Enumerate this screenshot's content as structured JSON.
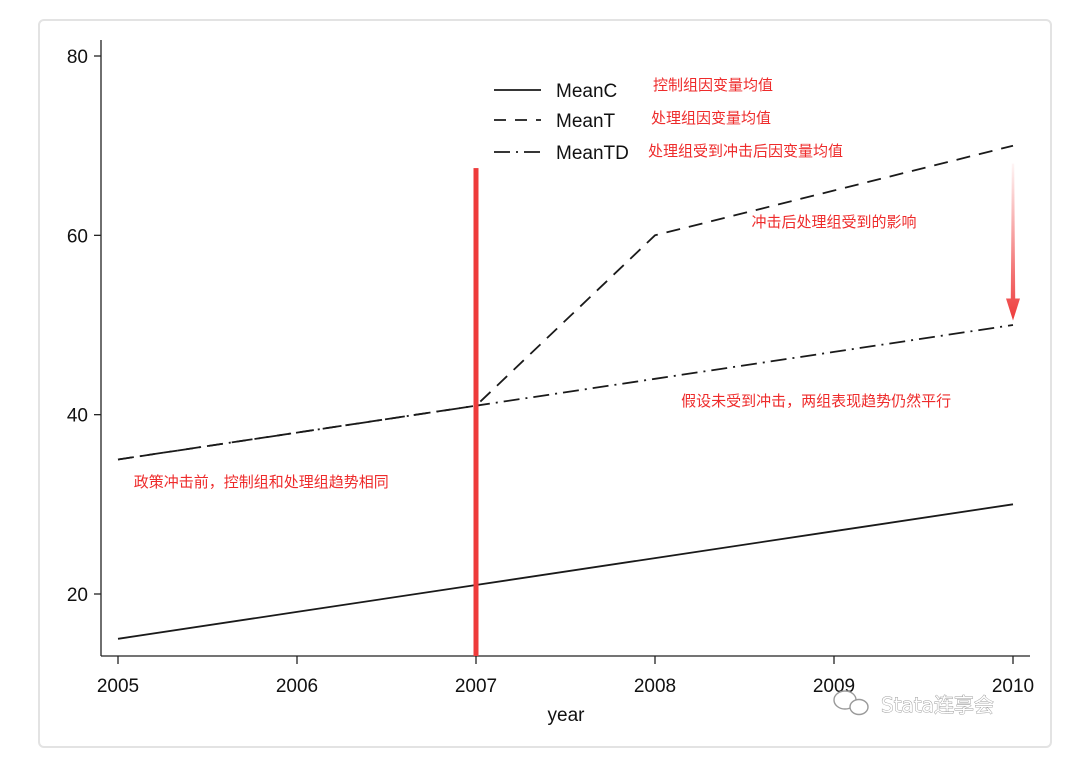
{
  "chart_data": {
    "type": "line",
    "x": [
      2005,
      2006,
      2007,
      2008,
      2009,
      2010
    ],
    "xlabel": "year",
    "ylabel": "",
    "xlim": [
      2005,
      2010
    ],
    "ylim": [
      13.5,
      81
    ],
    "yticks": [
      20,
      40,
      60,
      80
    ],
    "grid": false,
    "legend_position": "top-center",
    "series": [
      {
        "name": "MeanC",
        "style": "solid",
        "values": [
          15,
          18,
          21,
          24,
          27,
          30
        ],
        "legend_note": "控制组因变量均值"
      },
      {
        "name": "MeanT",
        "style": "dash",
        "values": [
          35,
          38,
          41,
          60,
          65,
          70
        ],
        "legend_note": "处理组因变量均值"
      },
      {
        "name": "MeanTD",
        "style": "dash-dot",
        "values": [
          35,
          38,
          41,
          44,
          47,
          50
        ],
        "legend_note": "处理组受到冲击后因变量均值"
      }
    ],
    "annotations": [
      {
        "text": "冲击后处理组受到的影响",
        "x": 2009.0,
        "y": 61.5
      },
      {
        "text": "假设未受到冲击，两组表现趋势仍然平行",
        "x": 2008.9,
        "y": 41.5
      },
      {
        "text": "政策冲击前，控制组和处理组趋势相同",
        "x": 2005.8,
        "y": 32.5
      }
    ],
    "marker_line": {
      "x": 2007,
      "y_top": 67.5,
      "color": "#ee3b3b"
    },
    "effect_arrow": {
      "x": 2010,
      "from_y": 68,
      "to_y": 50.5,
      "color": "#ee3b3b"
    },
    "colors": {
      "line": "#1a1a1a",
      "accent": "#ee3b3b",
      "note": "#ee2b2b"
    }
  },
  "watermark": {
    "text": "Stata连享会",
    "icon": "wechat-icon"
  }
}
